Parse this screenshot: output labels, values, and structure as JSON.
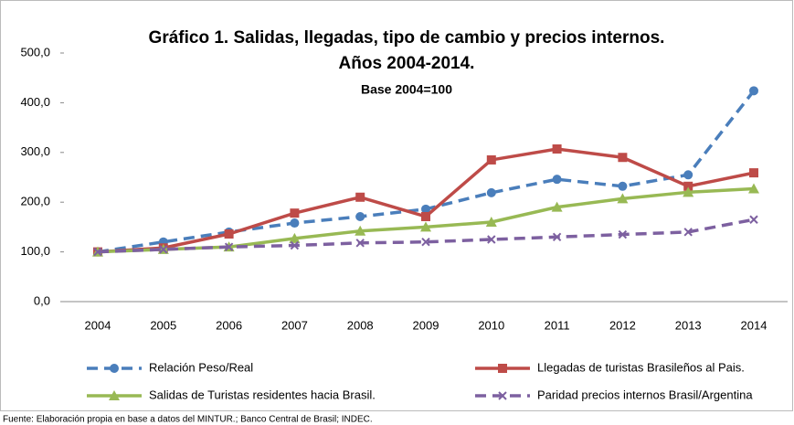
{
  "chart_data": {
    "type": "line",
    "title": "Gráfico 1. Salidas, llegadas, tipo de cambio y precios internos.",
    "subtitle": "Años 2004-2014.",
    "note": "Base 2004=100",
    "source": "Fuente: Elaboración propia en base a datos del MINTUR.; Banco Central de Brasil; INDEC.",
    "categories": [
      "2004",
      "2005",
      "2006",
      "2007",
      "2008",
      "2009",
      "2010",
      "2011",
      "2012",
      "2013",
      "2014"
    ],
    "series": [
      {
        "name": "Relación Peso/Real",
        "color": "#4a7ebb",
        "marker": "circle",
        "line_style": "dashed",
        "values": [
          100,
          120,
          140,
          158,
          171,
          186,
          219,
          246,
          232,
          255,
          424
        ]
      },
      {
        "name": "Llegadas de turistas Brasileños al Pais.",
        "color": "#be4b48",
        "marker": "square",
        "line_style": "solid",
        "values": [
          100,
          108,
          136,
          178,
          210,
          171,
          285,
          307,
          290,
          232,
          259
        ]
      },
      {
        "name": "Salidas de Turistas residentes hacia Brasil.",
        "color": "#98b954",
        "marker": "triangle",
        "line_style": "solid",
        "values": [
          100,
          105,
          110,
          127,
          142,
          150,
          160,
          190,
          207,
          220,
          227
        ]
      },
      {
        "name": "Paridad precios internos Brasil/Argentina",
        "color": "#7d60a0",
        "marker": "x",
        "line_style": "dashed",
        "values": [
          100,
          105,
          110,
          113,
          118,
          120,
          125,
          130,
          135,
          140,
          165
        ]
      }
    ],
    "ylim": [
      0,
      500
    ],
    "yticks": [
      {
        "value": 0,
        "label": "0,0"
      },
      {
        "value": 100,
        "label": "100,0"
      },
      {
        "value": 200,
        "label": "200,0"
      },
      {
        "value": 300,
        "label": "300,0"
      },
      {
        "value": 400,
        "label": "400,0"
      },
      {
        "value": 500,
        "label": "500,0"
      }
    ],
    "legend": "bottom"
  }
}
